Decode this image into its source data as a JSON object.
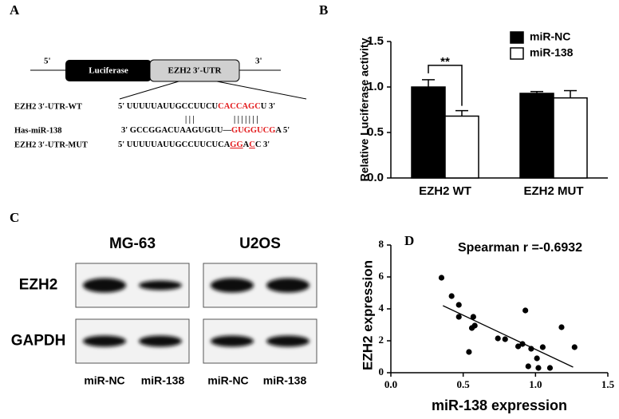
{
  "panel_a": {
    "label": "A",
    "end_5": "5'",
    "luciferase": "Luciferase",
    "utr_box": "EZH2 3′-UTR",
    "end_3": "3'",
    "rows": [
      {
        "name": "EZH2 3′-UTR-WT",
        "segments": [
          {
            "text": "5' UUUUUAUUGCCUUCU"
          },
          {
            "text": "CACCAGC",
            "color": "#e31a1c"
          },
          {
            "text": "U 3'"
          }
        ]
      },
      {
        "name": "Has-miR-138",
        "segments": [
          {
            "text": "3'   GCCGGACUAAGUGUU—"
          },
          {
            "text": "GUGGUCG",
            "color": "#e31a1c"
          },
          {
            "text": "A 5'"
          }
        ]
      },
      {
        "name": "EZH2 3′-UTR-MUT",
        "segments": [
          {
            "text": "5' UUUUUAUUGCCUUCUCA"
          },
          {
            "text": "GG",
            "color": "#e31a1c",
            "underline": true
          },
          {
            "text": "A"
          },
          {
            "text": "C",
            "color": "#e31a1c",
            "underline": true
          },
          {
            "text": "C 3'"
          }
        ]
      }
    ],
    "pairs": [
      "| | |",
      "| | | | | | |"
    ]
  },
  "panel_c": {
    "label": "C",
    "groups": [
      "MG-63",
      "U2OS"
    ],
    "proteins": [
      "EZH2",
      "GAPDH"
    ],
    "lanes": [
      "miR-NC",
      "miR-138",
      "miR-NC",
      "miR-138"
    ]
  },
  "chart_data": [
    {
      "type": "bar",
      "panel": "B",
      "y_label": "Relative Luciferase activity",
      "categories": [
        "EZH2 WT",
        "EZH2 MUT"
      ],
      "series": [
        {
          "name": "miR-NC",
          "color": "#000000",
          "values": [
            1.0,
            0.93
          ],
          "errors": [
            0.08,
            0.02
          ]
        },
        {
          "name": "miR-138",
          "color": "#ffffff",
          "values": [
            0.68,
            0.88
          ],
          "errors": [
            0.06,
            0.08
          ]
        }
      ],
      "ylim": [
        0,
        1.5
      ],
      "yticks": [
        {
          "value": 0,
          "label": "0.0"
        },
        0.5,
        {
          "value": 1,
          "label": "1.0"
        },
        1.5
      ],
      "annotation": "**",
      "legend": "upper right"
    },
    {
      "type": "scatter",
      "panel": "D",
      "title": "Spearman r =-0.6932",
      "x_label": "miR-138 expression",
      "y_label": "EZH2 expression",
      "color": "#000000",
      "x": [
        0.35,
        0.42,
        0.47,
        0.47,
        0.57,
        0.58,
        0.93,
        0.56,
        0.54,
        0.74,
        0.79,
        0.88,
        0.91,
        0.95,
        1.01,
        1.02,
        1.05,
        1.1,
        1.18,
        1.27,
        0.97
      ],
      "values": [
        5.95,
        4.8,
        4.25,
        3.5,
        3.5,
        2.95,
        3.9,
        2.8,
        1.3,
        2.15,
        2.1,
        1.65,
        1.8,
        0.4,
        0.9,
        0.3,
        1.6,
        0.3,
        2.85,
        1.6,
        1.5
      ],
      "fit": {
        "x": [
          0.36,
          1.26
        ],
        "y": [
          4.2,
          0.35
        ]
      },
      "xlim": [
        0,
        1.5
      ],
      "xticks": [
        {
          "value": 0,
          "label": "0.0"
        },
        0.5,
        {
          "value": 1,
          "label": "1.0"
        },
        1.5
      ],
      "ylim": [
        0,
        8
      ],
      "yticks": [
        0,
        2,
        4,
        6,
        8
      ]
    }
  ]
}
